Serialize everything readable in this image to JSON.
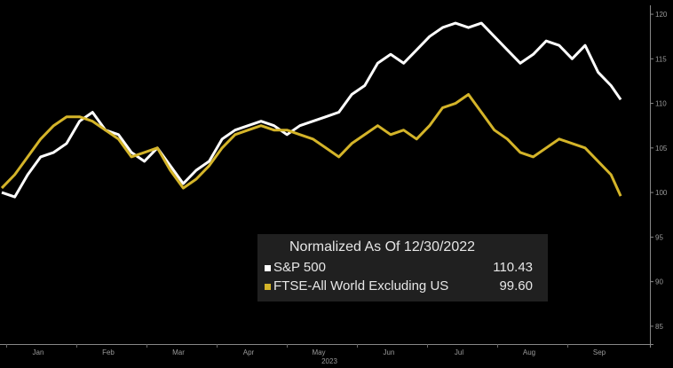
{
  "chart_data": {
    "type": "line",
    "xlabel": "2023",
    "x_ticks": [
      "Jan",
      "Feb",
      "Mar",
      "Apr",
      "May",
      "Jun",
      "Jul",
      "Aug",
      "Sep"
    ],
    "x_range": [
      0,
      1
    ],
    "ylim": [
      83,
      121
    ],
    "y_ticks": [
      85,
      90,
      95,
      100,
      105,
      110,
      115,
      120
    ],
    "grid": false,
    "legend": {
      "title": "Normalized As Of 12/30/2022",
      "position": "bottom-center"
    },
    "series": [
      {
        "name": "S&P 500",
        "color": "#ffffff",
        "last_value": "110.43",
        "points": [
          [
            0.0,
            100.0
          ],
          [
            0.02,
            99.5
          ],
          [
            0.04,
            102.0
          ],
          [
            0.06,
            104.0
          ],
          [
            0.08,
            104.5
          ],
          [
            0.1,
            105.5
          ],
          [
            0.12,
            108.0
          ],
          [
            0.14,
            109.0
          ],
          [
            0.16,
            107.0
          ],
          [
            0.18,
            106.5
          ],
          [
            0.2,
            104.5
          ],
          [
            0.22,
            103.5
          ],
          [
            0.24,
            105.0
          ],
          [
            0.26,
            103.0
          ],
          [
            0.28,
            101.0
          ],
          [
            0.3,
            102.5
          ],
          [
            0.32,
            103.5
          ],
          [
            0.34,
            106.0
          ],
          [
            0.36,
            107.0
          ],
          [
            0.38,
            107.5
          ],
          [
            0.4,
            108.0
          ],
          [
            0.42,
            107.5
          ],
          [
            0.44,
            106.5
          ],
          [
            0.46,
            107.5
          ],
          [
            0.48,
            108.0
          ],
          [
            0.5,
            108.5
          ],
          [
            0.52,
            109.0
          ],
          [
            0.54,
            111.0
          ],
          [
            0.56,
            112.0
          ],
          [
            0.58,
            114.5
          ],
          [
            0.6,
            115.5
          ],
          [
            0.62,
            114.5
          ],
          [
            0.64,
            116.0
          ],
          [
            0.66,
            117.5
          ],
          [
            0.68,
            118.5
          ],
          [
            0.7,
            119.0
          ],
          [
            0.72,
            118.5
          ],
          [
            0.74,
            119.0
          ],
          [
            0.76,
            117.5
          ],
          [
            0.78,
            116.0
          ],
          [
            0.8,
            114.5
          ],
          [
            0.82,
            115.5
          ],
          [
            0.84,
            117.0
          ],
          [
            0.86,
            116.5
          ],
          [
            0.88,
            115.0
          ],
          [
            0.9,
            116.5
          ],
          [
            0.92,
            113.5
          ],
          [
            0.94,
            112.0
          ],
          [
            0.955,
            110.43
          ]
        ]
      },
      {
        "name": "FTSE-All  World Excluding US",
        "color": "#d4b429",
        "last_value": "99.60",
        "points": [
          [
            0.0,
            100.5
          ],
          [
            0.02,
            102.0
          ],
          [
            0.04,
            104.0
          ],
          [
            0.06,
            106.0
          ],
          [
            0.08,
            107.5
          ],
          [
            0.1,
            108.5
          ],
          [
            0.12,
            108.5
          ],
          [
            0.14,
            108.0
          ],
          [
            0.16,
            107.0
          ],
          [
            0.18,
            106.0
          ],
          [
            0.2,
            104.0
          ],
          [
            0.22,
            104.5
          ],
          [
            0.24,
            105.0
          ],
          [
            0.26,
            102.5
          ],
          [
            0.28,
            100.5
          ],
          [
            0.3,
            101.5
          ],
          [
            0.32,
            103.0
          ],
          [
            0.34,
            105.0
          ],
          [
            0.36,
            106.5
          ],
          [
            0.38,
            107.0
          ],
          [
            0.4,
            107.5
          ],
          [
            0.42,
            107.0
          ],
          [
            0.44,
            107.0
          ],
          [
            0.46,
            106.5
          ],
          [
            0.48,
            106.0
          ],
          [
            0.5,
            105.0
          ],
          [
            0.52,
            104.0
          ],
          [
            0.54,
            105.5
          ],
          [
            0.56,
            106.5
          ],
          [
            0.58,
            107.5
          ],
          [
            0.6,
            106.5
          ],
          [
            0.62,
            107.0
          ],
          [
            0.64,
            106.0
          ],
          [
            0.66,
            107.5
          ],
          [
            0.68,
            109.5
          ],
          [
            0.7,
            110.0
          ],
          [
            0.72,
            111.0
          ],
          [
            0.74,
            109.0
          ],
          [
            0.76,
            107.0
          ],
          [
            0.78,
            106.0
          ],
          [
            0.8,
            104.5
          ],
          [
            0.82,
            104.0
          ],
          [
            0.84,
            105.0
          ],
          [
            0.86,
            106.0
          ],
          [
            0.88,
            105.5
          ],
          [
            0.9,
            105.0
          ],
          [
            0.92,
            103.5
          ],
          [
            0.94,
            102.0
          ],
          [
            0.955,
            99.6
          ]
        ]
      }
    ]
  }
}
